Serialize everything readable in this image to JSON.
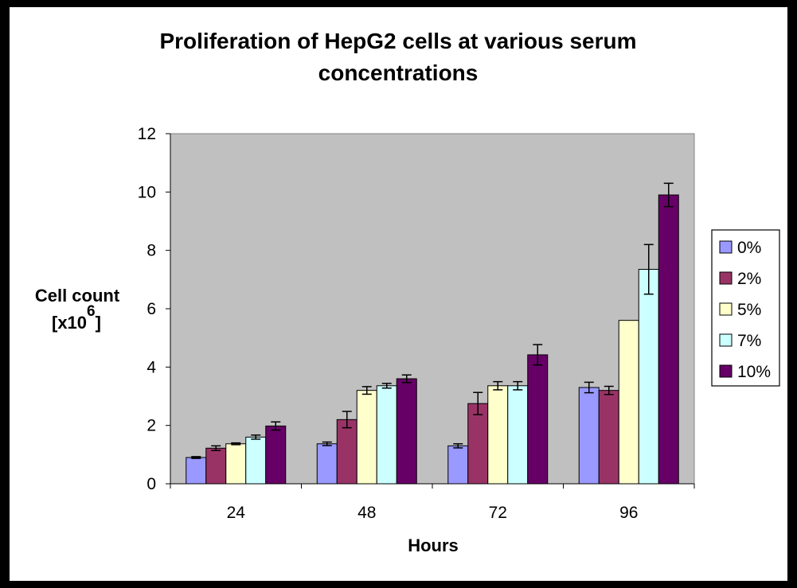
{
  "chart_data": {
    "type": "bar",
    "title_lines": [
      "Proliferation of HepG2 cells at various serum",
      "concentrations"
    ],
    "xlabel": "Hours",
    "ylabel_line1": "Cell count",
    "ylabel_line2_base": "[x10",
    "ylabel_superscript": "6",
    "ylabel_line2_close": "]",
    "categories": [
      "24",
      "48",
      "72",
      "96"
    ],
    "ylim": [
      0,
      12
    ],
    "yticks": [
      0,
      2,
      4,
      6,
      8,
      10,
      12
    ],
    "grid": false,
    "plot_background": "#c0c0c0",
    "legend_position": "right",
    "series": [
      {
        "name": "0%",
        "color": "#9999ff",
        "values": [
          0.9,
          1.37,
          1.3,
          3.3
        ],
        "errors": [
          0.03,
          0.06,
          0.07,
          0.18
        ]
      },
      {
        "name": "2%",
        "color": "#993366",
        "values": [
          1.22,
          2.2,
          2.75,
          3.2
        ],
        "errors": [
          0.08,
          0.28,
          0.38,
          0.14
        ]
      },
      {
        "name": "5%",
        "color": "#ffffcc",
        "values": [
          1.37,
          3.2,
          3.36,
          5.6
        ],
        "errors": [
          0.03,
          0.13,
          0.14,
          0
        ]
      },
      {
        "name": "7%",
        "color": "#ccffff",
        "values": [
          1.6,
          3.36,
          3.36,
          7.35
        ],
        "errors": [
          0.07,
          0.08,
          0.14,
          0.85
        ]
      },
      {
        "name": "10%",
        "color": "#660066",
        "values": [
          1.98,
          3.6,
          4.42,
          9.9
        ],
        "errors": [
          0.14,
          0.13,
          0.35,
          0.4
        ]
      }
    ]
  }
}
